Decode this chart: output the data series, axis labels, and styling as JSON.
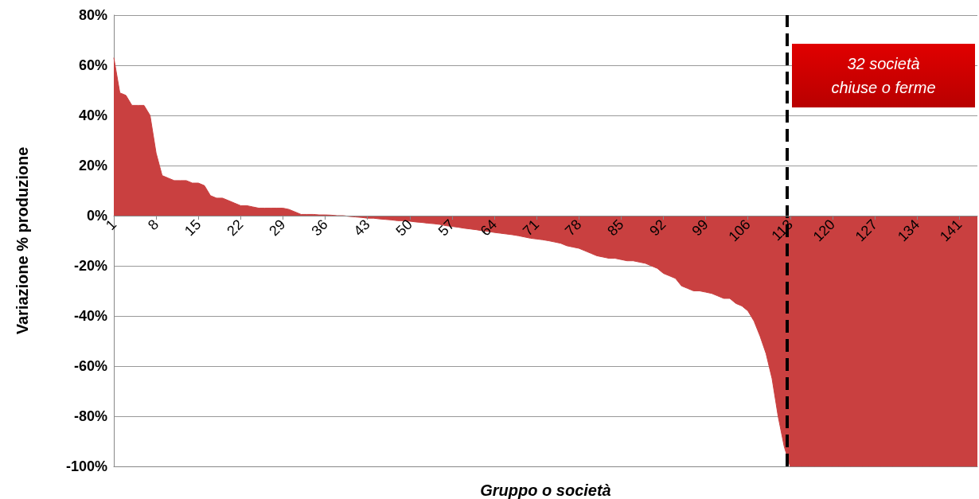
{
  "chart_data": {
    "type": "area",
    "xlabel": "Gruppo o società",
    "ylabel": "Variazione % produzione",
    "x": [
      1,
      2,
      3,
      4,
      5,
      6,
      7,
      8,
      9,
      10,
      11,
      12,
      13,
      14,
      15,
      16,
      17,
      18,
      19,
      20,
      21,
      22,
      23,
      24,
      25,
      26,
      27,
      28,
      29,
      30,
      31,
      32,
      33,
      34,
      35,
      36,
      37,
      38,
      39,
      40,
      41,
      42,
      43,
      44,
      45,
      46,
      47,
      48,
      49,
      50,
      51,
      52,
      53,
      54,
      55,
      56,
      57,
      58,
      59,
      60,
      61,
      62,
      63,
      64,
      65,
      66,
      67,
      68,
      69,
      70,
      71,
      72,
      73,
      74,
      75,
      76,
      77,
      78,
      79,
      80,
      81,
      82,
      83,
      84,
      85,
      86,
      87,
      88,
      89,
      90,
      91,
      92,
      93,
      94,
      95,
      96,
      97,
      98,
      99,
      100,
      101,
      102,
      103,
      104,
      105,
      106,
      107,
      108,
      109,
      110,
      111,
      112,
      113,
      114,
      115,
      116,
      117,
      118,
      119,
      120,
      121,
      122,
      123,
      124,
      125,
      126,
      127,
      128,
      129,
      130,
      131,
      132,
      133,
      134,
      135,
      136,
      137,
      138,
      139,
      140,
      141,
      142,
      143,
      144
    ],
    "series": [
      {
        "color": "#c94040",
        "values": [
          63,
          49,
          48,
          44,
          44,
          44,
          40,
          25,
          16,
          15,
          14,
          14,
          14,
          13,
          13,
          12,
          8,
          7,
          7,
          6,
          5,
          4,
          4,
          3.5,
          3,
          3,
          3,
          3,
          3,
          2.5,
          1.5,
          0.5,
          0.5,
          0.5,
          0.3,
          0.3,
          0.2,
          0,
          0,
          -0.3,
          -0.5,
          -0.7,
          -1,
          -1,
          -1.3,
          -1.5,
          -1.7,
          -2,
          -2,
          -2.2,
          -2.5,
          -2.7,
          -3,
          -3.2,
          -3.5,
          -4,
          -4.3,
          -4.6,
          -5,
          -5.3,
          -5.6,
          -6,
          -6.3,
          -6.7,
          -7,
          -7.3,
          -7.6,
          -8,
          -8.5,
          -9,
          -9.3,
          -9.6,
          -10,
          -10.5,
          -11,
          -12,
          -12.5,
          -13,
          -14,
          -15,
          -16,
          -16.5,
          -17,
          -17,
          -17.5,
          -18,
          -18,
          -18.5,
          -19,
          -20,
          -21,
          -23,
          -24,
          -25,
          -28,
          -29,
          -30,
          -30,
          -30.5,
          -31,
          -32,
          -33,
          -33,
          -35,
          -36,
          -38,
          -42,
          -48,
          -55,
          -65,
          -80,
          -92,
          -100,
          -100,
          -100,
          -100,
          -100,
          -100,
          -100,
          -100,
          -100,
          -100,
          -100,
          -100,
          -100,
          -100,
          -100,
          -100,
          -100,
          -100,
          -100,
          -100,
          -100,
          -100,
          -100,
          -100,
          -100,
          -100,
          -100,
          -100,
          -100,
          -100,
          -100,
          -100
        ]
      }
    ],
    "xlim": [
      1,
      144
    ],
    "xticks": [
      1,
      8,
      15,
      22,
      29,
      36,
      43,
      50,
      57,
      64,
      71,
      78,
      85,
      92,
      99,
      106,
      113,
      120,
      127,
      134,
      141
    ],
    "ylim": [
      -100,
      80
    ],
    "yticks": [
      {
        "value": -100,
        "label": "-100%"
      },
      {
        "value": -80,
        "label": "-80%"
      },
      {
        "value": -60,
        "label": "-60%"
      },
      {
        "value": -40,
        "label": "-40%"
      },
      {
        "value": -20,
        "label": "-20%"
      },
      {
        "value": 0,
        "label": "0%"
      },
      {
        "value": 20,
        "label": "20%"
      },
      {
        "value": 40,
        "label": "40%"
      },
      {
        "value": 60,
        "label": "60%"
      },
      {
        "value": 80,
        "label": "80%"
      }
    ],
    "grid": "y",
    "ref_lines": [
      {
        "axis": "x",
        "value": 112.5,
        "label": "32 società chiuse o ferme",
        "color": "#000000",
        "line_style": "dashed"
      }
    ]
  }
}
